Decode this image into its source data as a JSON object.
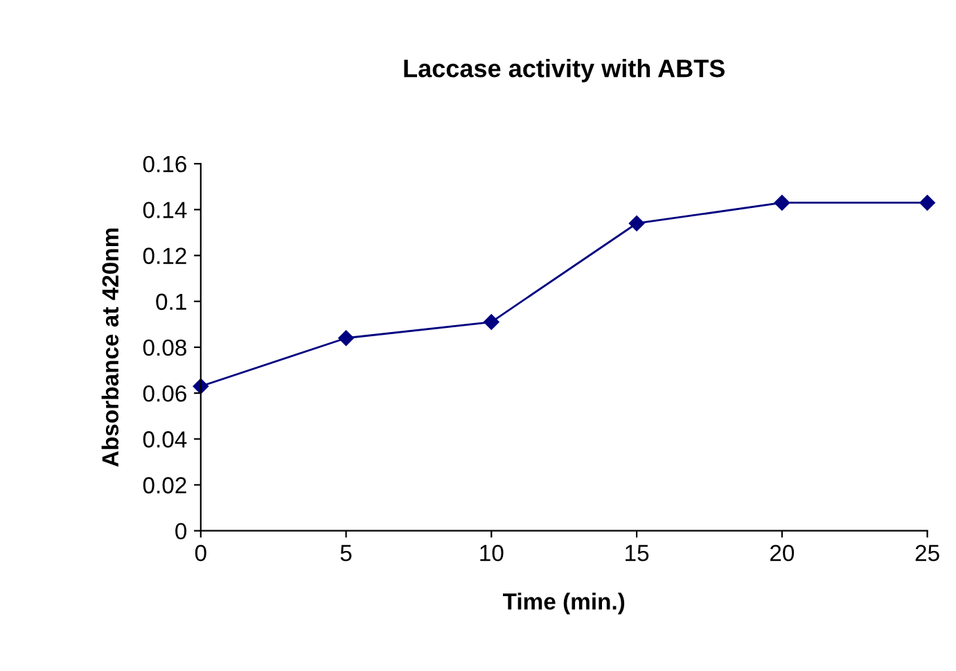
{
  "chart_data": {
    "type": "line",
    "title": "Laccase activity with ABTS",
    "xlabel": "Time (min.)",
    "ylabel": "Absorbance at 420nm",
    "x": [
      0,
      5,
      10,
      15,
      20,
      25
    ],
    "series": [
      {
        "color": "#000080",
        "values": [
          0.063,
          0.084,
          0.091,
          0.134,
          0.143,
          0.143
        ]
      }
    ],
    "xlim": [
      0,
      25
    ],
    "xticks": [
      0,
      5,
      10,
      15,
      20,
      25
    ],
    "ylim": [
      0,
      0.16
    ],
    "yticks": [
      0,
      0.02,
      0.04,
      0.06,
      0.08,
      0.1,
      0.12,
      0.14,
      0.16
    ],
    "grid": false,
    "legend": false,
    "marker": "diamond",
    "line_style": "solid"
  }
}
